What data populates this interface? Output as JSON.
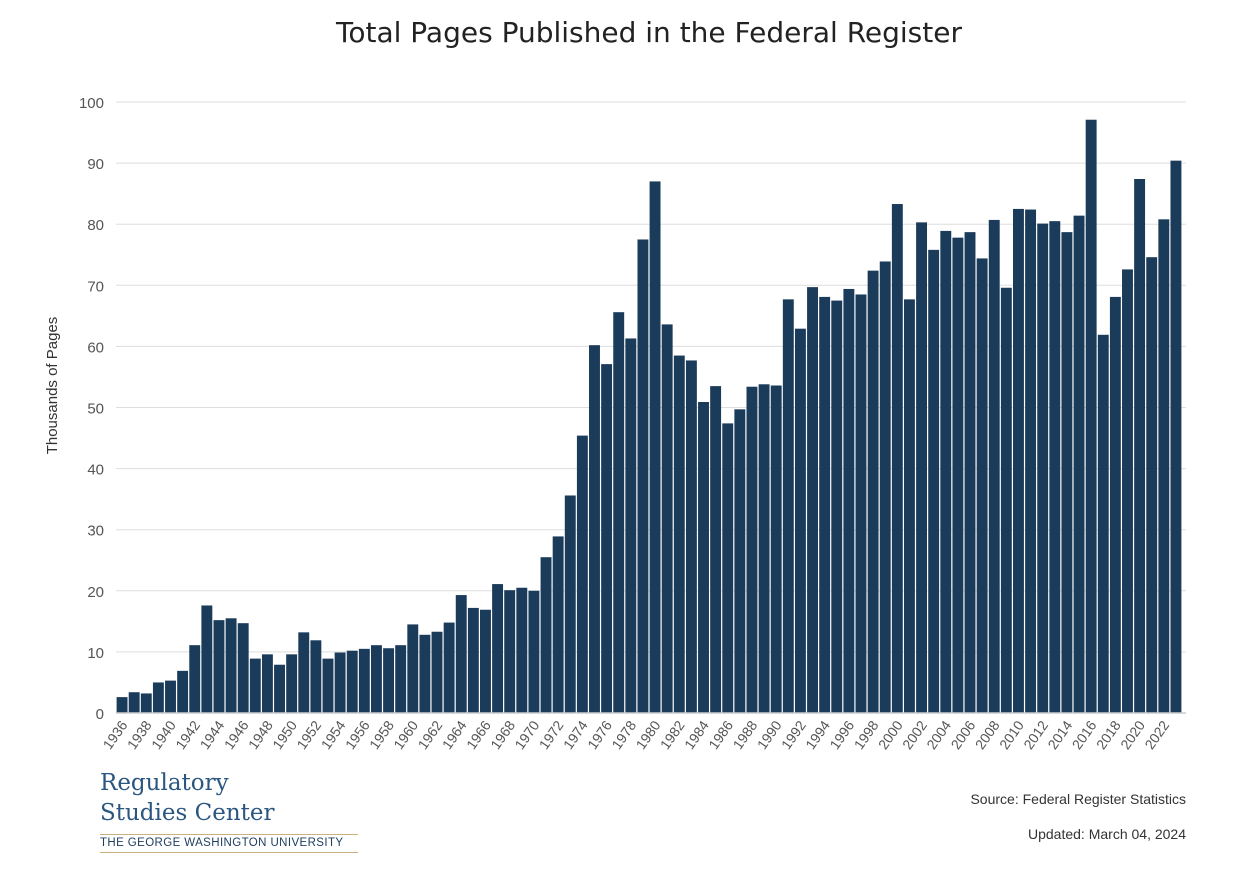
{
  "header": {
    "title": "Total Pages Published in the Federal Register"
  },
  "footer": {
    "logo_line1": "Regulatory",
    "logo_line2": "Studies Center",
    "logo_sub": "THE GEORGE WASHINGTON UNIVERSITY",
    "source": "Source: Federal Register Statistics",
    "updated": "Updated: March 04, 2024"
  },
  "colors": {
    "bar": "#1b3b5a",
    "grid": "#dddddd",
    "axis": "#555555"
  },
  "chart_data": {
    "type": "bar",
    "title": "Total Pages Published in the Federal Register",
    "xlabel": "",
    "ylabel": "Thousands of Pages",
    "ylim": [
      0,
      100
    ],
    "yticks": [
      0,
      10,
      20,
      30,
      40,
      50,
      60,
      70,
      80,
      90,
      100
    ],
    "grid": true,
    "categories": [
      1936,
      1937,
      1938,
      1939,
      1940,
      1941,
      1942,
      1943,
      1944,
      1945,
      1946,
      1947,
      1948,
      1949,
      1950,
      1951,
      1952,
      1953,
      1954,
      1955,
      1956,
      1957,
      1958,
      1959,
      1960,
      1961,
      1962,
      1963,
      1964,
      1965,
      1966,
      1967,
      1968,
      1969,
      1970,
      1971,
      1972,
      1973,
      1974,
      1975,
      1976,
      1977,
      1978,
      1979,
      1980,
      1981,
      1982,
      1983,
      1984,
      1985,
      1986,
      1987,
      1988,
      1989,
      1990,
      1991,
      1992,
      1993,
      1994,
      1995,
      1996,
      1997,
      1998,
      1999,
      2000,
      2001,
      2002,
      2003,
      2004,
      2005,
      2006,
      2007,
      2008,
      2009,
      2010,
      2011,
      2012,
      2013,
      2014,
      2015,
      2016,
      2017,
      2018,
      2019,
      2020,
      2021,
      2022,
      2023
    ],
    "tick_labels": [
      1936,
      1938,
      1940,
      1942,
      1944,
      1946,
      1948,
      1950,
      1952,
      1954,
      1956,
      1958,
      1960,
      1962,
      1964,
      1966,
      1968,
      1970,
      1972,
      1974,
      1976,
      1978,
      1980,
      1982,
      1984,
      1986,
      1988,
      1990,
      1992,
      1994,
      1996,
      1998,
      2000,
      2002,
      2004,
      2006,
      2008,
      2010,
      2012,
      2014,
      2016,
      2018,
      2020,
      2022
    ],
    "values": [
      2.6,
      3.4,
      3.2,
      5.0,
      5.3,
      6.9,
      11.1,
      17.6,
      15.2,
      15.5,
      14.7,
      8.9,
      9.6,
      7.9,
      9.6,
      13.2,
      11.9,
      8.9,
      9.9,
      10.2,
      10.5,
      11.1,
      10.6,
      11.1,
      14.5,
      12.8,
      13.3,
      14.8,
      19.3,
      17.2,
      16.9,
      21.1,
      20.1,
      20.5,
      20.0,
      25.5,
      28.9,
      35.6,
      45.4,
      60.2,
      57.1,
      65.6,
      61.3,
      77.5,
      87.0,
      63.6,
      58.5,
      57.7,
      50.9,
      53.5,
      47.4,
      49.7,
      53.4,
      53.8,
      53.6,
      67.7,
      62.9,
      69.7,
      68.1,
      67.5,
      69.4,
      68.5,
      72.4,
      73.9,
      83.3,
      67.7,
      80.3,
      75.8,
      78.9,
      77.8,
      78.7,
      74.4,
      80.7,
      69.6,
      82.5,
      82.4,
      80.1,
      80.5,
      78.7,
      81.4,
      97.1,
      61.9,
      68.1,
      72.6,
      87.4,
      74.6,
      80.8,
      90.4
    ]
  }
}
